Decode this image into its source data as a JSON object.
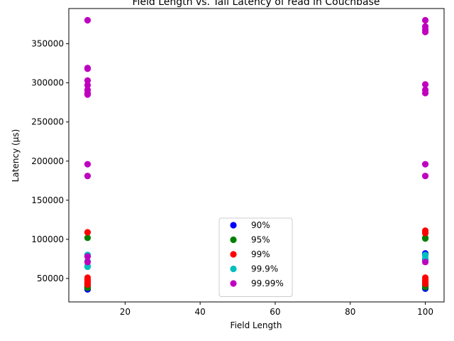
{
  "chart_data": {
    "type": "scatter",
    "title": "Field Length vs. Tail Latency of read in Couchbase",
    "xlabel": "Field Length",
    "ylabel": "Latency (µs)",
    "xlim": [
      5,
      105
    ],
    "ylim": [
      20000,
      395000
    ],
    "xticks": [
      20,
      40,
      60,
      80,
      100
    ],
    "yticks": [
      50000,
      100000,
      150000,
      200000,
      250000,
      300000,
      350000
    ],
    "grid": false,
    "legend_position": "bottom-center",
    "series": [
      {
        "name": "90%",
        "color": "#0000ff",
        "points": [
          [
            10,
            36000
          ],
          [
            10,
            37000
          ],
          [
            10,
            38000
          ],
          [
            10,
            39000
          ],
          [
            10,
            40000
          ],
          [
            10,
            43000
          ],
          [
            10,
            80000
          ],
          [
            100,
            37000
          ],
          [
            100,
            38000
          ],
          [
            100,
            39000
          ],
          [
            100,
            40000
          ],
          [
            100,
            74000
          ],
          [
            100,
            80000
          ],
          [
            100,
            82000
          ]
        ]
      },
      {
        "name": "95%",
        "color": "#008000",
        "points": [
          [
            10,
            38000
          ],
          [
            10,
            39000
          ],
          [
            10,
            40000
          ],
          [
            10,
            41000
          ],
          [
            10,
            42000
          ],
          [
            10,
            44000
          ],
          [
            10,
            102000
          ],
          [
            100,
            39000
          ],
          [
            100,
            40000
          ],
          [
            100,
            42000
          ],
          [
            100,
            44000
          ],
          [
            100,
            101000
          ],
          [
            100,
            102000
          ]
        ]
      },
      {
        "name": "99%",
        "color": "#ff0000",
        "points": [
          [
            10,
            42000
          ],
          [
            10,
            44000
          ],
          [
            10,
            46000
          ],
          [
            10,
            48000
          ],
          [
            10,
            51000
          ],
          [
            10,
            109000
          ],
          [
            100,
            43000
          ],
          [
            100,
            46000
          ],
          [
            100,
            48000
          ],
          [
            100,
            51000
          ],
          [
            100,
            108000
          ],
          [
            100,
            111000
          ]
        ]
      },
      {
        "name": "99.9%",
        "color": "#00bfbf",
        "points": [
          [
            10,
            65000
          ],
          [
            10,
            66000
          ],
          [
            10,
            72000
          ],
          [
            10,
            80000
          ],
          [
            100,
            72000
          ],
          [
            100,
            76000
          ],
          [
            100,
            80000
          ]
        ]
      },
      {
        "name": "99.99%",
        "color": "#bf00bf",
        "points": [
          [
            10,
            71000
          ],
          [
            10,
            78000
          ],
          [
            10,
            181000
          ],
          [
            10,
            196000
          ],
          [
            10,
            285000
          ],
          [
            10,
            287000
          ],
          [
            10,
            291000
          ],
          [
            10,
            297000
          ],
          [
            10,
            303000
          ],
          [
            10,
            318000
          ],
          [
            10,
            319000
          ],
          [
            10,
            380000
          ],
          [
            100,
            71000
          ],
          [
            100,
            181000
          ],
          [
            100,
            196000
          ],
          [
            100,
            287000
          ],
          [
            100,
            291000
          ],
          [
            100,
            298000
          ],
          [
            100,
            365000
          ],
          [
            100,
            368000
          ],
          [
            100,
            372000
          ],
          [
            100,
            380000
          ]
        ]
      }
    ]
  }
}
